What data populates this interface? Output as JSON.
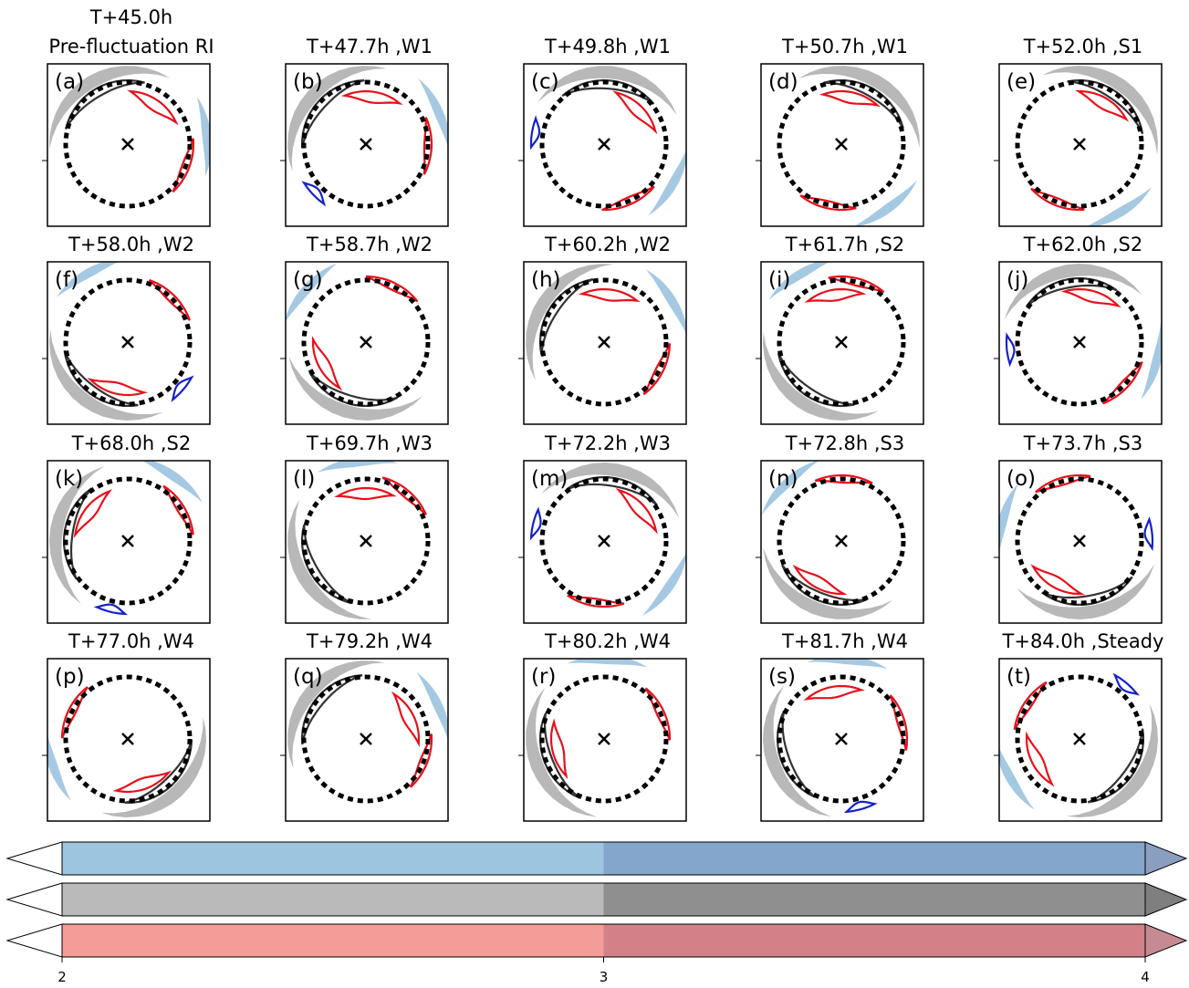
{
  "panels": [
    {
      "title": "T+45.0h",
      "subtitle": "Pre-fluctuation RI",
      "label": "(a)"
    },
    {
      "title": "T+47.7h ,W1",
      "label": "(b)"
    },
    {
      "title": "T+49.8h ,W1",
      "label": "(c)"
    },
    {
      "title": "T+50.7h ,W1",
      "label": "(d)"
    },
    {
      "title": "T+52.0h ,S1",
      "label": "(e)"
    },
    {
      "title": "T+58.0h ,W2",
      "label": "(f)"
    },
    {
      "title": "T+58.7h ,W2",
      "label": "(g)"
    },
    {
      "title": "T+60.2h ,W2",
      "label": "(h)"
    },
    {
      "title": "T+61.7h ,S2",
      "label": "(i)"
    },
    {
      "title": "T+62.0h ,S2",
      "label": "(j)"
    },
    {
      "title": "T+68.0h ,S2",
      "label": "(k)"
    },
    {
      "title": "T+69.7h ,W3",
      "label": "(l)"
    },
    {
      "title": "T+72.2h ,W3",
      "label": "(m)"
    },
    {
      "title": "T+72.8h ,S3",
      "label": "(n)"
    },
    {
      "title": "T+73.7h ,S3",
      "label": "(o)"
    },
    {
      "title": "T+77.0h ,W4",
      "label": "(p)"
    },
    {
      "title": "T+79.2h ,W4",
      "label": "(q)"
    },
    {
      "title": "T+80.2h ,W4",
      "label": "(r)"
    },
    {
      "title": "T+81.7h ,W4",
      "label": "(s)"
    },
    {
      "title": "T+84.0h ,Steady",
      "label": "(t)"
    }
  ],
  "colorbars": {
    "xlim": [
      2,
      4
    ],
    "xticks": [
      2,
      3,
      4
    ],
    "bars": [
      {
        "colors": [
          "#9ec5e0",
          "#84a6cc"
        ],
        "extend_colors": [
          "#ffffff",
          "#8a9fc0"
        ]
      },
      {
        "colors": [
          "#bababa",
          "#8f8f8f"
        ],
        "extend_colors": [
          "#ffffff",
          "#7f7f7f"
        ]
      },
      {
        "colors": [
          "#f49c97",
          "#d28189"
        ],
        "extend_colors": [
          "#ffffff",
          "#c68a93"
        ]
      }
    ]
  }
}
